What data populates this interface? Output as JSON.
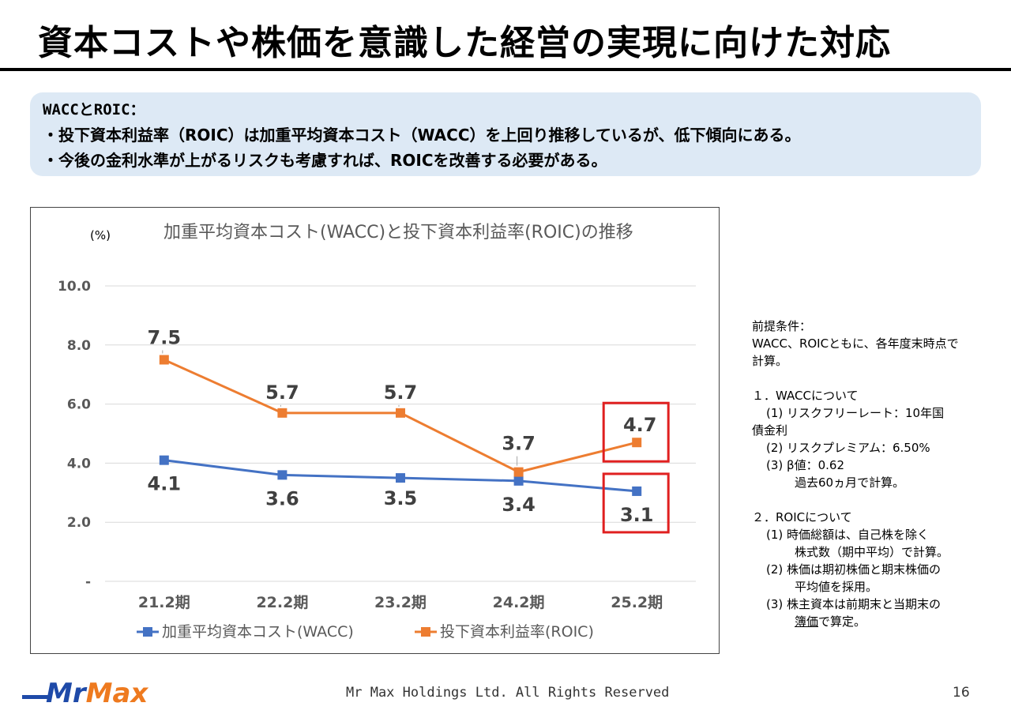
{
  "title": "資本コストや株価を意識した経営の実現に向けた対応",
  "summary": {
    "heading": "WACCとROIC：",
    "lines": [
      "・投下資本利益率（ROIC）は加重平均資本コスト（WACC）を上回り推移しているが、低下傾向にある。",
      "・今後の金利水準が上がるリスクも考慮すれば、ROICを改善する必要がある。"
    ]
  },
  "chart_data": {
    "type": "line",
    "title": "加重平均資本コスト(WACC)と投下資本利益率(ROIC)の推移",
    "ylabel": "(%)",
    "xlabel": "",
    "categories": [
      "21.2期",
      "22.2期",
      "23.2期",
      "24.2期",
      "25.2期"
    ],
    "ylim": [
      0,
      10
    ],
    "yticks": [
      {
        "value": 10,
        "label": "10.0"
      },
      {
        "value": 8,
        "label": "8.0"
      },
      {
        "value": 6,
        "label": "6.0"
      },
      {
        "value": 4,
        "label": "4.0"
      },
      {
        "value": 2,
        "label": "2.0"
      },
      {
        "value": 0,
        "label": "-"
      }
    ],
    "grid": true,
    "legend_position": "bottom",
    "series": [
      {
        "name": "加重平均資本コスト(WACC)",
        "color": "#4472c4",
        "values": [
          4.1,
          3.6,
          3.5,
          3.4,
          3.05
        ],
        "labels": [
          "4.1",
          "3.6",
          "3.5",
          "3.4",
          "3.1"
        ]
      },
      {
        "name": "投下資本利益率(ROIC)",
        "color": "#ed7d31",
        "values": [
          7.5,
          5.7,
          5.7,
          3.7,
          4.7
        ],
        "labels": [
          "7.5",
          "5.7",
          "5.7",
          "3.7",
          "4.7"
        ]
      }
    ],
    "highlight_color": "#e02020"
  },
  "notes": {
    "lines": [
      {
        "text": "前提条件：",
        "indent": 0
      },
      {
        "text": "WACC、ROICともに、各年度末時点で",
        "indent": 0
      },
      {
        "text": "計算。",
        "indent": 0
      },
      {
        "text": "",
        "indent": 0
      },
      {
        "text": "１．WACCについて",
        "indent": 0
      },
      {
        "text": "(1) リスクフリーレート：10年国",
        "indent": 1
      },
      {
        "text": "債金利",
        "indent": 0
      },
      {
        "text": "(2) リスクプレミアム：6.50%",
        "indent": 1
      },
      {
        "text": "(3) β値：0.62",
        "indent": 1
      },
      {
        "text": "過去60ヵ月で計算。",
        "indent": 2
      },
      {
        "text": "",
        "indent": 0
      },
      {
        "text": "２．ROICについて",
        "indent": 0
      },
      {
        "text": "(1) 時価総額は、自己株を除く",
        "indent": 1
      },
      {
        "text": "株式数（期中平均）で計算。",
        "indent": 2
      },
      {
        "text": "(2) 株価は期初株価と期末株価の",
        "indent": 1
      },
      {
        "text": "平均値を採用。",
        "indent": 2
      },
      {
        "text": "(3) 株主資本は前期末と当期末の",
        "indent": 1
      }
    ],
    "last_line_underlined": "簿価",
    "last_line_rest": "で算定。"
  },
  "footer": {
    "logo_text": "MrMax",
    "copyright": "Mr Max Holdings Ltd. All Rights Reserved",
    "page_number": "16"
  },
  "colors": {
    "logo_blue": "#1e4aa8",
    "logo_orange": "#ee7a1f"
  }
}
